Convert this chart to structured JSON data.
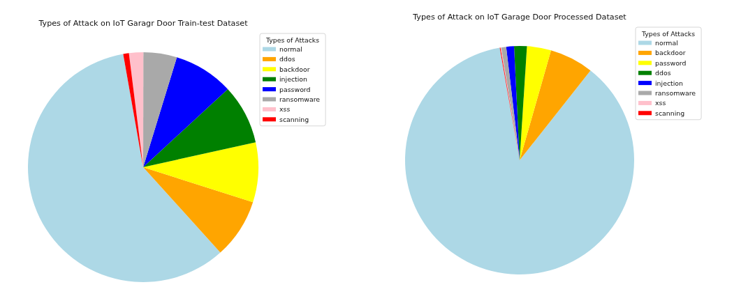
{
  "chart_data": [
    {
      "type": "pie",
      "title": "Types of Attack on IoT Garagr Door Train-test Dataset",
      "legend_title": "Types of Attacks",
      "legend": "top right",
      "categories": [
        "normal",
        "ddos",
        "backdoor",
        "injection",
        "password",
        "ransomware",
        "xss",
        "scanning"
      ],
      "values": [
        58.9,
        8.4,
        8.4,
        8.4,
        8.4,
        4.7,
        2.0,
        0.8
      ],
      "colors": [
        "#add8e6",
        "#ffa500",
        "#ffff00",
        "#008000",
        "#0000ff",
        "#a9a9a9",
        "#ffc0cb",
        "#ff0000"
      ]
    },
    {
      "type": "pie",
      "title": "Types of Attack on IoT Garage Door Processed Dataset",
      "legend_title": "Types of Attacks",
      "legend": "top right",
      "categories": [
        "normal",
        "backdoor",
        "password",
        "ddos",
        "injection",
        "ransomware",
        "xss",
        "scanning"
      ],
      "values": [
        86.6,
        6.2,
        3.4,
        1.8,
        1.1,
        0.7,
        0.1,
        0.1
      ],
      "colors": [
        "#add8e6",
        "#ffa500",
        "#ffff00",
        "#008000",
        "#0000ff",
        "#a9a9a9",
        "#ffc0cb",
        "#ff0000"
      ]
    }
  ]
}
